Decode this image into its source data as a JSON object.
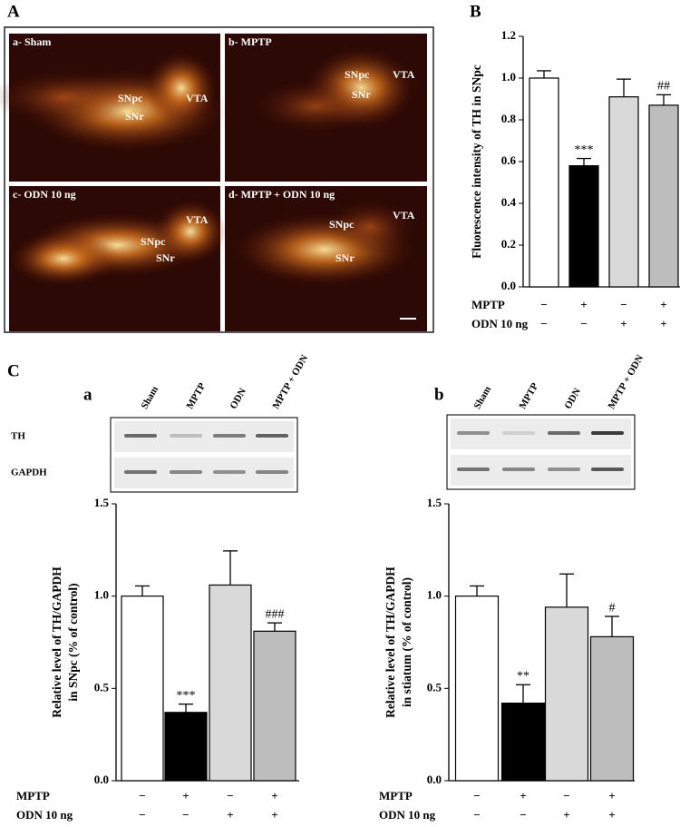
{
  "panel_labels": [
    "A",
    "B",
    "C"
  ],
  "micrographs": [
    {
      "title": "a- Sham",
      "labels": [
        "SNpc",
        "SNr",
        "VTA"
      ]
    },
    {
      "title": "b- MPTP",
      "labels": [
        "SNpc",
        "SNr",
        "VTA"
      ]
    },
    {
      "title": "c- ODN 10 ng",
      "labels": [
        "SNpc",
        "SNr",
        "VTA"
      ]
    },
    {
      "title": "d- MPTP + ODN  10 ng",
      "labels": [
        "SNpc",
        "SNr",
        "VTA"
      ]
    }
  ],
  "blots": [
    {
      "panel": "a",
      "lanes": [
        "Sham",
        "MPTP",
        "ODN",
        "MPTP + ODN"
      ],
      "rows": [
        "TH",
        "GAPDH"
      ]
    },
    {
      "panel": "b",
      "lanes": [
        "Sham",
        "MPTP",
        "ODN",
        "MPTP + ODN"
      ]
    }
  ],
  "chart_data": [
    {
      "type": "bar",
      "ylabel": [
        "Fluorescence intensity of TH in SNpc"
      ],
      "values": [
        1.0,
        0.58,
        0.91,
        0.87
      ],
      "errors": [
        0.035,
        0.035,
        0.085,
        0.05
      ],
      "annotations": [
        null,
        "***",
        null,
        "##"
      ],
      "colors": [
        "#ffffff",
        "#000000",
        "#d9d9d9",
        "#bdbdbd"
      ],
      "ylim": [
        0,
        1.2
      ],
      "yticks": [
        {
          "value": 0,
          "label": "0.0"
        },
        0.2,
        0.4,
        0.6,
        0.8,
        {
          "value": 1,
          "label": "1.0"
        },
        1.2
      ],
      "treatments": [
        {
          "name": "MPTP",
          "signs": [
            "−",
            "+",
            "−",
            "+"
          ]
        },
        {
          "name": "ODN 10 ng",
          "signs": [
            "−",
            "−",
            "+",
            "+"
          ]
        }
      ]
    },
    {
      "type": "bar",
      "ylabel": [
        "Relative level of TH/GAPDH",
        "in SNpc (% of control)"
      ],
      "values": [
        1.0,
        0.37,
        1.06,
        0.81
      ],
      "errors": [
        0.055,
        0.045,
        0.185,
        0.045
      ],
      "annotations": [
        null,
        "***",
        null,
        "###"
      ],
      "colors": [
        "#ffffff",
        "#000000",
        "#d9d9d9",
        "#bdbdbd"
      ],
      "ylim": [
        0,
        1.5
      ],
      "yticks": [
        {
          "value": 0,
          "label": "0.0"
        },
        0.5,
        {
          "value": 1,
          "label": "1.0"
        },
        1.5
      ],
      "treatments": [
        {
          "name": "MPTP",
          "signs": [
            "−",
            "+",
            "−",
            "+"
          ]
        },
        {
          "name": "ODN 10 ng",
          "signs": [
            "−",
            "−",
            "+",
            "+"
          ]
        }
      ]
    },
    {
      "type": "bar",
      "ylabel": [
        "Relative level of TH/GAPDH",
        "in stiatum (% of control)"
      ],
      "values": [
        1.0,
        0.42,
        0.94,
        0.78
      ],
      "errors": [
        0.055,
        0.1,
        0.18,
        0.11
      ],
      "annotations": [
        null,
        "**",
        null,
        "#"
      ],
      "colors": [
        "#ffffff",
        "#000000",
        "#d9d9d9",
        "#bdbdbd"
      ],
      "ylim": [
        0,
        1.5
      ],
      "yticks": [
        {
          "value": 0,
          "label": "0.0"
        },
        0.5,
        {
          "value": 1,
          "label": "1.0"
        },
        1.5
      ],
      "treatments": [
        {
          "name": "MPTP",
          "signs": [
            "−",
            "+",
            "−",
            "+"
          ]
        },
        {
          "name": "ODN 10 ng",
          "signs": [
            "−",
            "−",
            "+",
            "+"
          ]
        }
      ]
    }
  ]
}
